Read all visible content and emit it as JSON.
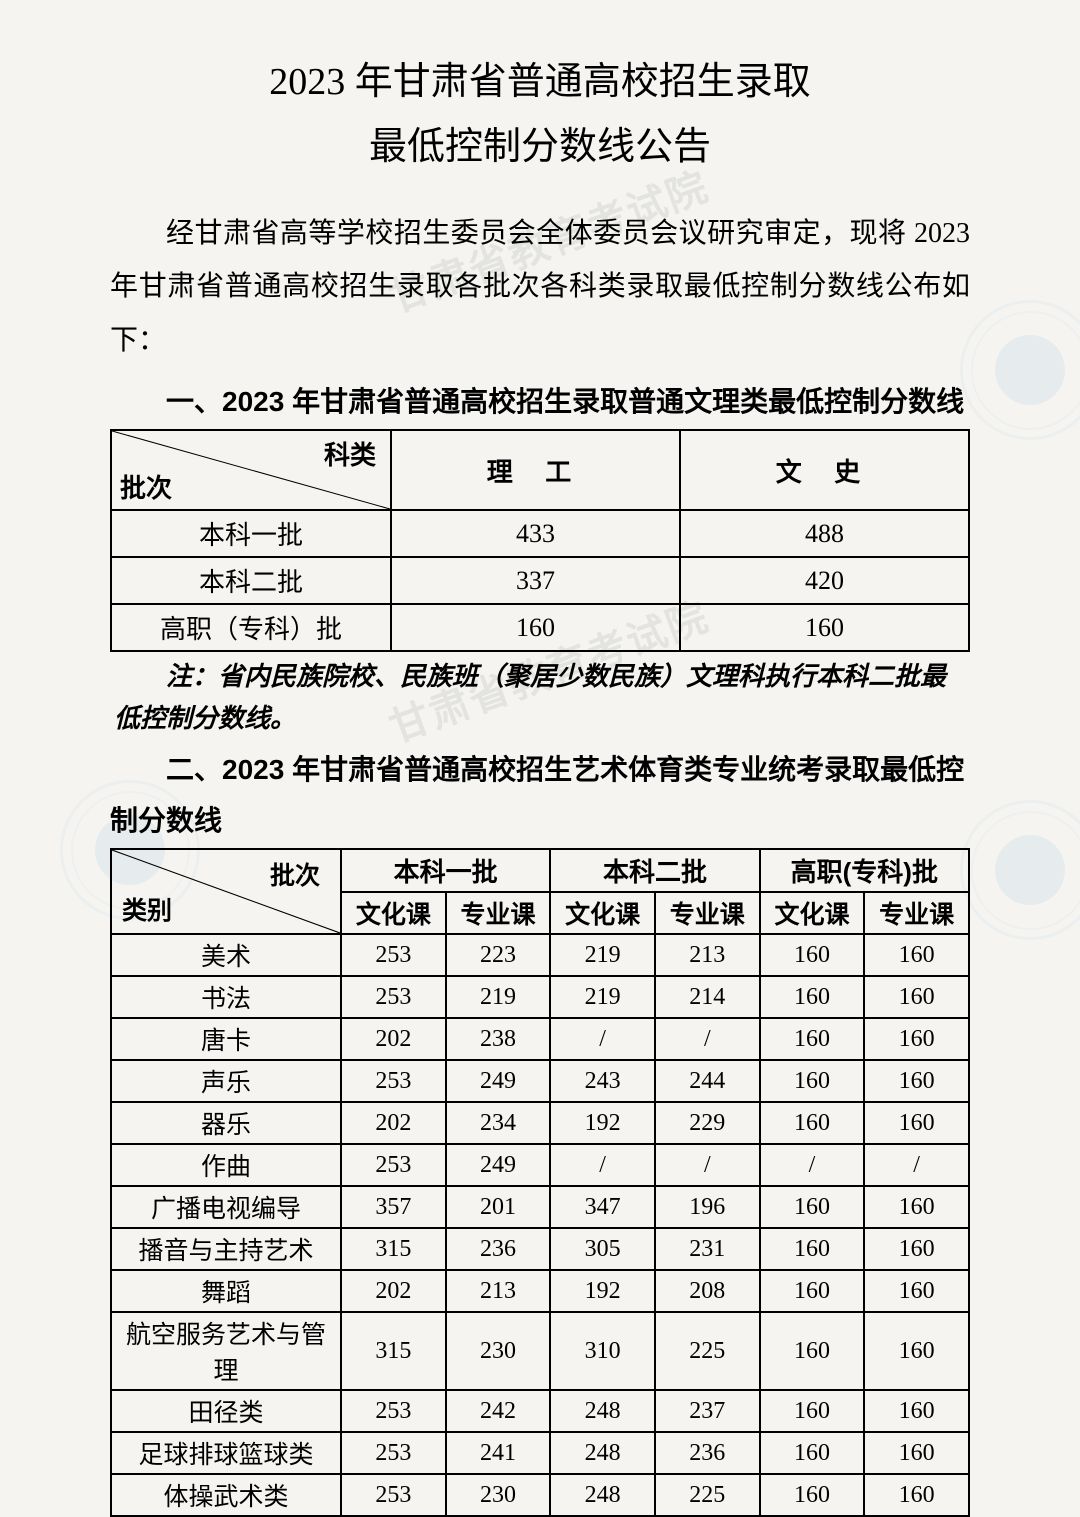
{
  "title_line1": "2023 年甘肃省普通高校招生录取",
  "title_line2": "最低控制分数线公告",
  "intro": "经甘肃省高等学校招生委员会全体委员会议研究审定，现将 2023 年甘肃省普通高校招生录取各批次各科类录取最低控制分数线公布如下：",
  "section1_heading": "一、2023 年甘肃省普通高校招生录取普通文理类最低控制分数线",
  "table1": {
    "corner_top": "科类",
    "corner_bottom": "批次",
    "columns": [
      "理 工",
      "文 史"
    ],
    "rows": [
      {
        "batch": "本科一批",
        "values": [
          "433",
          "488"
        ]
      },
      {
        "batch": "本科二批",
        "values": [
          "337",
          "420"
        ]
      },
      {
        "batch": "高职（专科）批",
        "values": [
          "160",
          "160"
        ]
      }
    ]
  },
  "note1": "注：省内民族院校、民族班（聚居少数民族）文理科执行本科二批最低控制分数线。",
  "section2_heading": "二、2023 年甘肃省普通高校招生艺术体育类专业统考录取最低控制分数线",
  "table2": {
    "corner_top": "批次",
    "corner_bottom": "类别",
    "batch_headers": [
      "本科一批",
      "本科二批",
      "高职(专科)批"
    ],
    "sub_headers": [
      "文化课",
      "专业课"
    ],
    "rows": [
      {
        "cat": "美术",
        "v": [
          "253",
          "223",
          "219",
          "213",
          "160",
          "160"
        ]
      },
      {
        "cat": "书法",
        "v": [
          "253",
          "219",
          "219",
          "214",
          "160",
          "160"
        ]
      },
      {
        "cat": "唐卡",
        "v": [
          "202",
          "238",
          "/",
          "/",
          "160",
          "160"
        ]
      },
      {
        "cat": "声乐",
        "v": [
          "253",
          "249",
          "243",
          "244",
          "160",
          "160"
        ]
      },
      {
        "cat": "器乐",
        "v": [
          "202",
          "234",
          "192",
          "229",
          "160",
          "160"
        ]
      },
      {
        "cat": "作曲",
        "v": [
          "253",
          "249",
          "/",
          "/",
          "/",
          "/"
        ]
      },
      {
        "cat": "广播电视编导",
        "v": [
          "357",
          "201",
          "347",
          "196",
          "160",
          "160"
        ]
      },
      {
        "cat": "播音与主持艺术",
        "v": [
          "315",
          "236",
          "305",
          "231",
          "160",
          "160"
        ]
      },
      {
        "cat": "舞蹈",
        "v": [
          "202",
          "213",
          "192",
          "208",
          "160",
          "160"
        ]
      },
      {
        "cat": "航空服务艺术与管理",
        "v": [
          "315",
          "230",
          "310",
          "225",
          "160",
          "160"
        ]
      },
      {
        "cat": "田径类",
        "v": [
          "253",
          "242",
          "248",
          "237",
          "160",
          "160"
        ]
      },
      {
        "cat": "足球排球篮球类",
        "v": [
          "253",
          "241",
          "248",
          "236",
          "160",
          "160"
        ]
      },
      {
        "cat": "体操武术类",
        "v": [
          "253",
          "230",
          "248",
          "225",
          "160",
          "160"
        ]
      }
    ]
  },
  "colors": {
    "background": "#f5f4f0",
    "text": "#000000",
    "border": "#000000",
    "watermark": "rgba(80,150,220,0.2)"
  }
}
